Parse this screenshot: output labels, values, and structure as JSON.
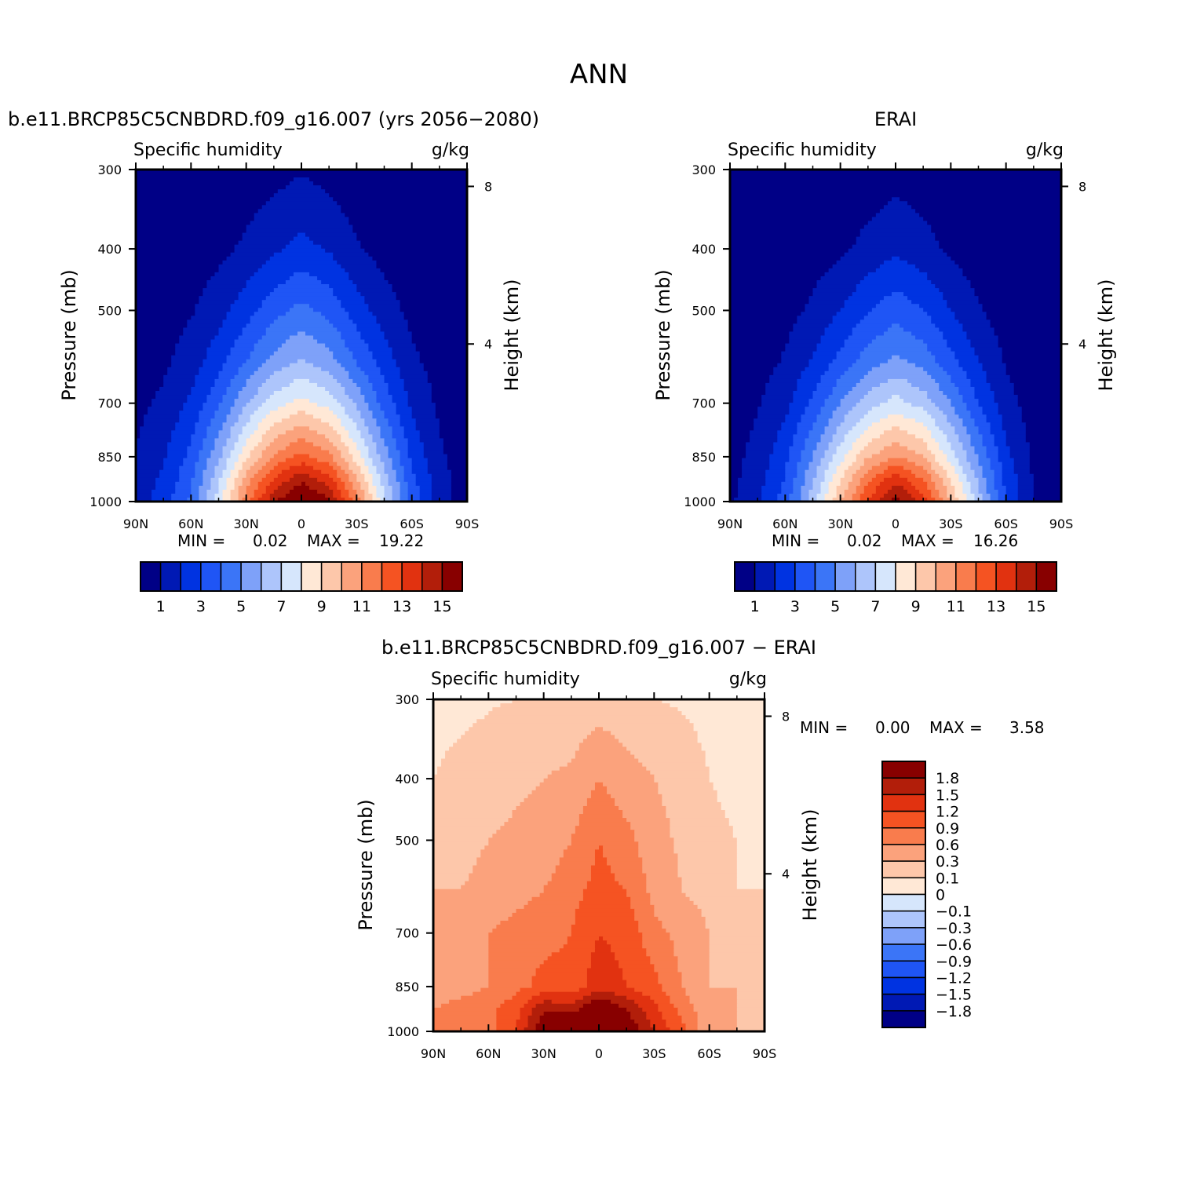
{
  "suptitle": "ANN",
  "colors": {
    "abs_levels": [
      "#000086",
      "#0019b4",
      "#0033e1",
      "#1f55f5",
      "#3b75f7",
      "#7ea1f9",
      "#adc5fb",
      "#d6e6fc",
      "#ffe8d6",
      "#fdc7aa",
      "#fba27c",
      "#f97c4d",
      "#f55322",
      "#e13210",
      "#b21e0a",
      "#880000"
    ],
    "diff_levels": [
      "#000086",
      "#0019b4",
      "#0033e1",
      "#1f55f5",
      "#3b75f7",
      "#7ea1f9",
      "#adc5fb",
      "#d6e6fc",
      "#ffe8d6",
      "#fdc7aa",
      "#fba27c",
      "#f97c4d",
      "#f55322",
      "#e13210",
      "#b21e0a",
      "#880000"
    ]
  },
  "panels": [
    {
      "title": "b.e11.BRCP85C5CNBDRD.f09_g16.007 (yrs 2056−2080)",
      "variable": "Specific humidity",
      "units": "g/kg",
      "ylabel": "Pressure (mb)",
      "ylabel_right": "Height (km)",
      "minmax": {
        "min_label": "MIN =",
        "min": "0.02",
        "max_label": "MAX =",
        "max": "19.22"
      },
      "colorbar_labels": [
        "1",
        "3",
        "5",
        "7",
        "9",
        "11",
        "13",
        "15"
      ]
    },
    {
      "title": "ERAI",
      "variable": "Specific humidity",
      "units": "g/kg",
      "ylabel": "Pressure (mb)",
      "ylabel_right": "Height (km)",
      "minmax": {
        "min_label": "MIN =",
        "min": "0.02",
        "max_label": "MAX =",
        "max": "16.26"
      },
      "colorbar_labels": [
        "1",
        "3",
        "5",
        "7",
        "9",
        "11",
        "13",
        "15"
      ]
    },
    {
      "title": "b.e11.BRCP85C5CNBDRD.f09_g16.007 − ERAI",
      "variable": "Specific humidity",
      "units": "g/kg",
      "ylabel": "Pressure (mb)",
      "ylabel_right": "Height (km)",
      "minmax": {
        "min_label": "MIN =",
        "min": "0.00",
        "max_label": "MAX =",
        "max": "3.58"
      },
      "colorbar_labels": [
        "1.8",
        "1.5",
        "1.2",
        "0.9",
        "0.6",
        "0.3",
        "0.1",
        "0",
        "−0.1",
        "−0.3",
        "−0.6",
        "−0.9",
        "−1.2",
        "−1.5",
        "−1.8"
      ]
    }
  ],
  "chart_data": [
    {
      "type": "heatmap",
      "title": "b.e11.BRCP85C5CNBDRD.f09_g16.007 (yrs 2056−2080)",
      "xlabel": "",
      "ylabel": "Pressure (mb)",
      "x_ticks": [
        "90N",
        "60N",
        "30N",
        "0",
        "30S",
        "60S",
        "90S"
      ],
      "x_values": [
        90,
        60,
        30,
        0,
        -30,
        -60,
        -90
      ],
      "y_ticks": [
        300,
        400,
        500,
        700,
        850,
        1000
      ],
      "y_scale": "log",
      "y_inverted": true,
      "right_axis": {
        "label": "Height (km)",
        "ticks": [
          8,
          4
        ]
      },
      "contour_levels": [
        1,
        2,
        3,
        4,
        5,
        6,
        7,
        8,
        9,
        10,
        11,
        12,
        13,
        14,
        15
      ],
      "lat": [
        90,
        75,
        60,
        45,
        30,
        15,
        0,
        -15,
        -30,
        -45,
        -60,
        -75,
        -90
      ],
      "pressure": [
        1000,
        925,
        850,
        700,
        600,
        500,
        400,
        300
      ],
      "values": [
        [
          1.5,
          2.5,
          4.2,
          7.5,
          11.5,
          14.8,
          16.5,
          15.2,
          11.5,
          7.2,
          3.8,
          1.5,
          0.5
        ],
        [
          1.3,
          2.2,
          3.8,
          6.8,
          10.5,
          13.2,
          14.8,
          13.5,
          10.2,
          6.5,
          3.3,
          1.4,
          0.5
        ],
        [
          1.1,
          1.9,
          3.3,
          5.8,
          8.8,
          11.2,
          12.3,
          11.3,
          8.5,
          5.5,
          2.8,
          1.2,
          0.4
        ],
        [
          0.7,
          1.2,
          2.2,
          3.8,
          5.9,
          7.5,
          8.4,
          7.6,
          5.8,
          3.6,
          1.8,
          0.8,
          0.3
        ],
        [
          0.5,
          0.8,
          1.5,
          2.6,
          4.0,
          5.3,
          6.1,
          5.4,
          3.9,
          2.5,
          1.2,
          0.6,
          0.2
        ],
        [
          0.3,
          0.5,
          0.9,
          1.6,
          2.6,
          3.6,
          4.3,
          3.7,
          2.5,
          1.5,
          0.7,
          0.4,
          0.1
        ],
        [
          0.1,
          0.2,
          0.4,
          0.7,
          1.2,
          1.8,
          2.3,
          1.9,
          1.1,
          0.6,
          0.3,
          0.2,
          0.05
        ],
        [
          0.03,
          0.05,
          0.1,
          0.2,
          0.4,
          0.6,
          0.9,
          0.6,
          0.3,
          0.2,
          0.08,
          0.04,
          0.02
        ]
      ]
    },
    {
      "type": "heatmap",
      "title": "ERAI",
      "xlabel": "",
      "ylabel": "Pressure (mb)",
      "x_ticks": [
        "90N",
        "60N",
        "30N",
        "0",
        "30S",
        "60S",
        "90S"
      ],
      "x_values": [
        90,
        60,
        30,
        0,
        -30,
        -60,
        -90
      ],
      "y_ticks": [
        300,
        400,
        500,
        700,
        850,
        1000
      ],
      "y_scale": "log",
      "y_inverted": true,
      "right_axis": {
        "label": "Height (km)",
        "ticks": [
          8,
          4
        ]
      },
      "contour_levels": [
        1,
        2,
        3,
        4,
        5,
        6,
        7,
        8,
        9,
        10,
        11,
        12,
        13,
        14,
        15
      ],
      "lat": [
        90,
        75,
        60,
        45,
        30,
        15,
        0,
        -15,
        -30,
        -45,
        -60,
        -75,
        -90
      ],
      "pressure": [
        1000,
        925,
        850,
        700,
        600,
        500,
        400,
        300
      ],
      "values": [
        [
          0.8,
          1.8,
          3.5,
          6.5,
          10.0,
          13.0,
          15.5,
          13.5,
          10.0,
          6.5,
          3.0,
          1.0,
          0.5
        ],
        [
          0.7,
          1.6,
          3.1,
          5.9,
          9.0,
          11.8,
          13.8,
          12.0,
          9.0,
          5.8,
          2.7,
          0.9,
          0.4
        ],
        [
          0.6,
          1.4,
          2.7,
          5.0,
          7.6,
          9.9,
          11.0,
          10.0,
          7.5,
          4.9,
          2.3,
          0.8,
          0.35
        ],
        [
          0.4,
          0.9,
          1.7,
          3.2,
          5.0,
          6.5,
          7.4,
          6.6,
          5.0,
          3.0,
          1.4,
          0.5,
          0.2
        ],
        [
          0.3,
          0.6,
          1.1,
          2.1,
          3.3,
          4.5,
          5.2,
          4.6,
          3.3,
          2.0,
          0.9,
          0.35,
          0.15
        ],
        [
          0.2,
          0.35,
          0.65,
          1.2,
          2.0,
          2.9,
          3.6,
          3.0,
          2.0,
          1.1,
          0.5,
          0.2,
          0.1
        ],
        [
          0.08,
          0.15,
          0.25,
          0.5,
          0.8,
          1.3,
          1.8,
          1.4,
          0.8,
          0.4,
          0.2,
          0.1,
          0.04
        ],
        [
          0.02,
          0.04,
          0.07,
          0.12,
          0.25,
          0.4,
          0.6,
          0.4,
          0.2,
          0.1,
          0.05,
          0.03,
          0.02
        ]
      ]
    },
    {
      "type": "heatmap",
      "title": "b.e11.BRCP85C5CNBDRD.f09_g16.007 − ERAI",
      "xlabel": "",
      "ylabel": "Pressure (mb)",
      "x_ticks": [
        "90N",
        "60N",
        "30N",
        "0",
        "30S",
        "60S",
        "90S"
      ],
      "x_values": [
        90,
        60,
        30,
        0,
        -30,
        -60,
        -90
      ],
      "y_ticks": [
        300,
        400,
        500,
        700,
        850,
        1000
      ],
      "y_scale": "log",
      "y_inverted": true,
      "right_axis": {
        "label": "Height (km)",
        "ticks": [
          8,
          4
        ]
      },
      "contour_levels": [
        -1.8,
        -1.5,
        -1.2,
        -0.9,
        -0.6,
        -0.3,
        -0.1,
        0,
        0.1,
        0.3,
        0.6,
        0.9,
        1.2,
        1.5,
        1.8
      ],
      "lat": [
        90,
        75,
        60,
        45,
        30,
        15,
        0,
        -15,
        -30,
        -45,
        -60,
        -75,
        -90
      ],
      "pressure": [
        1000,
        925,
        850,
        700,
        600,
        500,
        400,
        300
      ],
      "values": [
        [
          0.7,
          0.7,
          0.8,
          1.2,
          2.1,
          2.3,
          2.3,
          2.1,
          1.5,
          1.0,
          0.3,
          0.3,
          0.2
        ],
        [
          0.6,
          0.7,
          0.8,
          1.1,
          1.8,
          1.7,
          2.2,
          1.8,
          1.3,
          0.8,
          0.4,
          0.3,
          0.2
        ],
        [
          0.5,
          0.5,
          0.6,
          0.8,
          1.0,
          1.0,
          1.4,
          1.2,
          1.0,
          0.6,
          0.3,
          0.3,
          0.2
        ],
        [
          0.3,
          0.4,
          0.6,
          0.7,
          0.8,
          0.9,
          1.2,
          1.1,
          0.7,
          0.5,
          0.3,
          0.2,
          0.1
        ],
        [
          0.3,
          0.3,
          0.4,
          0.5,
          0.6,
          0.8,
          1.0,
          0.9,
          0.5,
          0.3,
          0.2,
          0.1,
          0.1
        ],
        [
          0.2,
          0.2,
          0.3,
          0.35,
          0.4,
          0.6,
          0.9,
          0.7,
          0.4,
          0.25,
          0.15,
          0.1,
          0.05
        ],
        [
          0.1,
          0.15,
          0.2,
          0.25,
          0.3,
          0.35,
          0.6,
          0.4,
          0.3,
          0.2,
          0.1,
          0.05,
          0.05
        ],
        [
          0.05,
          0.05,
          0.08,
          0.1,
          0.1,
          0.1,
          0.15,
          0.12,
          0.1,
          0.08,
          0.05,
          0.05,
          0.03
        ]
      ]
    }
  ]
}
